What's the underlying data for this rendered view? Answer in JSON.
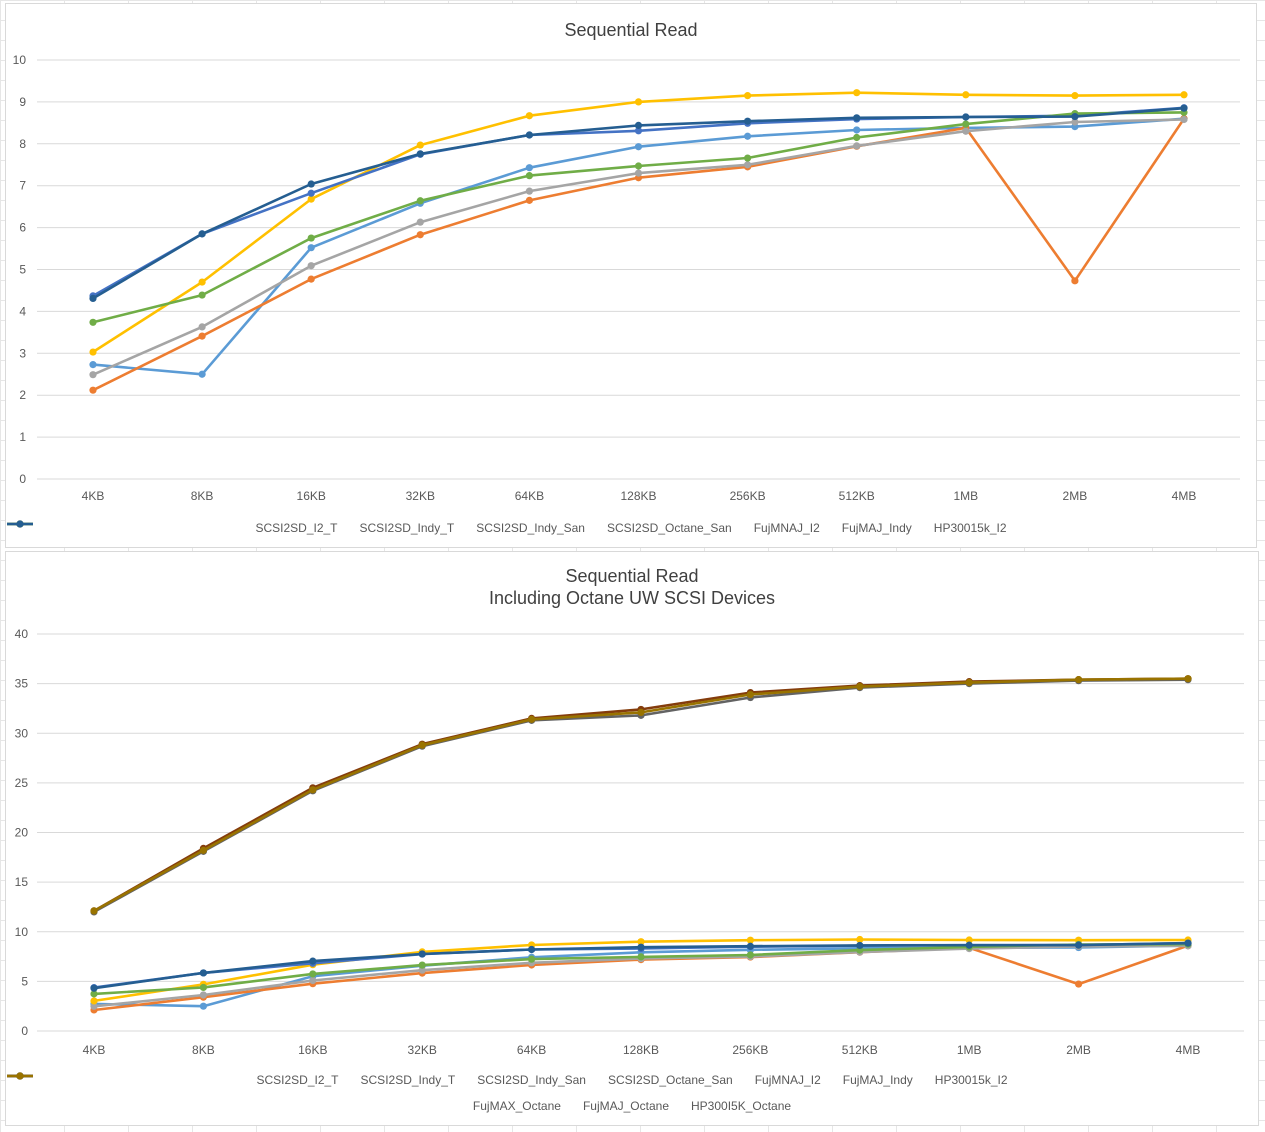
{
  "chart_data": [
    {
      "type": "line",
      "title": "Sequential Read",
      "subtitle": "",
      "xlabel": "",
      "ylabel": "",
      "ylim": [
        0,
        10
      ],
      "yticks": [
        0,
        1,
        2,
        3,
        4,
        5,
        6,
        7,
        8,
        9,
        10
      ],
      "grid": "horizontal",
      "legend": "bottom",
      "categories": [
        "4KB",
        "8KB",
        "16KB",
        "32KB",
        "64KB",
        "128KB",
        "256KB",
        "512KB",
        "1MB",
        "2MB",
        "4MB"
      ],
      "series": [
        {
          "name": "SCSI2SD_I2_T",
          "color": "#5b9bd5",
          "values": [
            2.73,
            2.5,
            5.52,
            6.58,
            7.43,
            7.93,
            8.18,
            8.33,
            8.38,
            8.41,
            8.6
          ]
        },
        {
          "name": "SCSI2SD_Indy_T",
          "color": "#ed7d31",
          "values": [
            2.12,
            3.41,
            4.77,
            5.83,
            6.65,
            7.19,
            7.45,
            7.94,
            8.38,
            4.73,
            8.6
          ]
        },
        {
          "name": "SCSI2SD_Indy_San",
          "color": "#a5a5a5",
          "values": [
            2.49,
            3.63,
            5.09,
            6.13,
            6.87,
            7.3,
            7.5,
            7.95,
            8.3,
            8.52,
            8.58
          ]
        },
        {
          "name": "SCSI2SD_Octane_San",
          "color": "#ffc000",
          "values": [
            3.03,
            4.7,
            6.68,
            7.97,
            8.67,
            9.0,
            9.15,
            9.22,
            9.17,
            9.15,
            9.17
          ]
        },
        {
          "name": "FujMNAJ_I2",
          "color": "#4472c4",
          "values": [
            4.37,
            5.85,
            6.82,
            7.75,
            8.21,
            8.31,
            8.49,
            8.59,
            8.64,
            8.67,
            8.86
          ]
        },
        {
          "name": "FujMAJ_Indy",
          "color": "#70ad47",
          "values": [
            3.74,
            4.39,
            5.75,
            6.64,
            7.24,
            7.47,
            7.66,
            8.15,
            8.47,
            8.72,
            8.75
          ]
        },
        {
          "name": "HP30015k_I2",
          "color": "#255e91",
          "values": [
            4.31,
            5.85,
            7.04,
            7.76,
            8.21,
            8.44,
            8.54,
            8.62,
            8.64,
            8.65,
            8.85
          ]
        }
      ]
    },
    {
      "type": "line",
      "title": "Sequential Read",
      "subtitle": "Including Octane UW SCSI Devices",
      "xlabel": "",
      "ylabel": "",
      "ylim": [
        0,
        40
      ],
      "yticks": [
        0,
        5,
        10,
        15,
        20,
        25,
        30,
        35,
        40
      ],
      "grid": "horizontal",
      "legend": "bottom",
      "categories": [
        "4KB",
        "8KB",
        "16KB",
        "32KB",
        "64KB",
        "128KB",
        "256KB",
        "512KB",
        "1MB",
        "2MB",
        "4MB"
      ],
      "series": [
        {
          "name": "SCSI2SD_I2_T",
          "color": "#5b9bd5",
          "values": [
            2.73,
            2.5,
            5.52,
            6.58,
            7.43,
            7.93,
            8.18,
            8.33,
            8.38,
            8.41,
            8.6
          ]
        },
        {
          "name": "SCSI2SD_Indy_T",
          "color": "#ed7d31",
          "values": [
            2.12,
            3.41,
            4.77,
            5.83,
            6.65,
            7.19,
            7.45,
            7.94,
            8.38,
            4.73,
            8.6
          ]
        },
        {
          "name": "SCSI2SD_Indy_San",
          "color": "#a5a5a5",
          "values": [
            2.49,
            3.63,
            5.09,
            6.13,
            6.87,
            7.3,
            7.5,
            7.95,
            8.3,
            8.52,
            8.58
          ]
        },
        {
          "name": "SCSI2SD_Octane_San",
          "color": "#ffc000",
          "values": [
            3.03,
            4.7,
            6.68,
            7.97,
            8.67,
            9.0,
            9.15,
            9.22,
            9.17,
            9.15,
            9.17
          ]
        },
        {
          "name": "FujMNAJ_I2",
          "color": "#4472c4",
          "values": [
            4.37,
            5.85,
            6.82,
            7.75,
            8.21,
            8.31,
            8.49,
            8.59,
            8.64,
            8.67,
            8.86
          ]
        },
        {
          "name": "FujMAJ_Indy",
          "color": "#70ad47",
          "values": [
            3.74,
            4.39,
            5.75,
            6.64,
            7.24,
            7.47,
            7.66,
            8.15,
            8.47,
            8.72,
            8.75
          ]
        },
        {
          "name": "HP30015k_I2",
          "color": "#255e91",
          "values": [
            4.31,
            5.85,
            7.04,
            7.76,
            8.21,
            8.44,
            8.54,
            8.62,
            8.64,
            8.65,
            8.85
          ]
        },
        {
          "name": "FujMAX_Octane",
          "color": "#843c0c",
          "values": [
            12.1,
            18.4,
            24.5,
            28.9,
            31.5,
            32.4,
            34.1,
            34.8,
            35.2,
            35.4,
            35.5
          ]
        },
        {
          "name": "FujMAJ_Octane",
          "color": "#636363",
          "values": [
            12.0,
            18.1,
            24.2,
            28.7,
            31.3,
            31.8,
            33.6,
            34.6,
            35.0,
            35.3,
            35.4
          ]
        },
        {
          "name": "HP300I5K_Octane",
          "color": "#997300",
          "values": [
            12.1,
            18.2,
            24.3,
            28.8,
            31.4,
            32.1,
            33.9,
            34.7,
            35.1,
            35.4,
            35.5
          ]
        }
      ]
    }
  ]
}
